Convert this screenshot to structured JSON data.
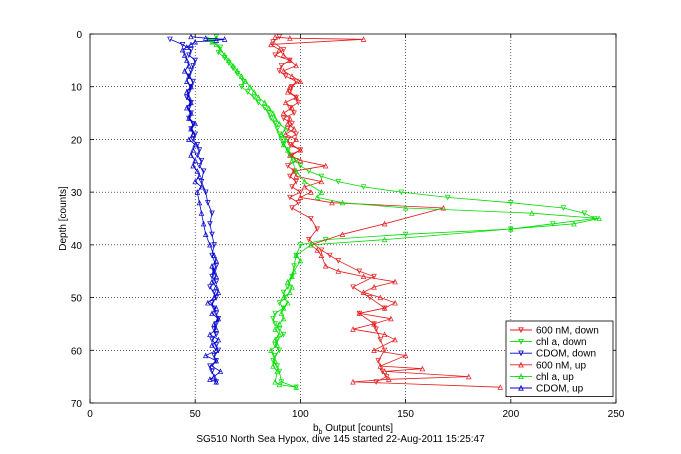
{
  "caption": "SG510 North Sea Hypox, dive 145 started 22-Aug-2011 15:25:47",
  "chart_data": {
    "type": "line",
    "title": "",
    "xlabel_main": "b",
    "xlabel_sub": "b",
    "xlabel_rest": " Output [counts]",
    "ylabel": "Depth [counts]",
    "xlim": [
      0,
      250
    ],
    "ylim": [
      0,
      70
    ],
    "y_reversed": true,
    "grid": true,
    "legend_position": "bottom-right",
    "x_ticks": [
      0,
      50,
      100,
      150,
      200,
      250
    ],
    "y_ticks": [
      0,
      10,
      20,
      30,
      40,
      50,
      60,
      70
    ],
    "colors": {
      "red": "#e41a1c",
      "green": "#00dd00",
      "blue": "#0000cc"
    },
    "series": [
      {
        "name": "600 nM, down",
        "color": "#e41a1c",
        "marker": "triangle-down",
        "x": [
          90,
          87,
          92,
          88,
          95,
          91,
          90,
          93,
          98,
          96,
          95,
          98,
          99,
          95,
          97,
          92,
          96,
          94,
          98,
          94,
          95,
          100,
          96,
          98,
          94,
          97,
          95,
          98,
          96,
          100,
          95,
          99,
          96,
          105,
          108,
          104,
          110,
          114,
          118,
          128,
          135,
          125,
          133,
          140,
          128,
          135,
          136,
          138,
          140,
          137,
          139,
          141,
          136
        ],
        "y": [
          0.5,
          1.5,
          3,
          4,
          5,
          6,
          7,
          8,
          9,
          10,
          11,
          12,
          13,
          14,
          15,
          16,
          17,
          18,
          19,
          20,
          21,
          22,
          23,
          24,
          25,
          26,
          27,
          28,
          29,
          30,
          31,
          32,
          33,
          35,
          37,
          39,
          41,
          42,
          43,
          45,
          46,
          48,
          50,
          52,
          53,
          55,
          56,
          58,
          60,
          62,
          64,
          65,
          66
        ]
      },
      {
        "name": "chl a, down",
        "color": "#00dd00",
        "marker": "triangle-down",
        "x": [
          60,
          58,
          62,
          61,
          64,
          66,
          68,
          70,
          73,
          72,
          75,
          78,
          80,
          83,
          85,
          86,
          88,
          89,
          90,
          91,
          92,
          94,
          95,
          98,
          100,
          104,
          110,
          118,
          130,
          148,
          170,
          200,
          225,
          235,
          240,
          220,
          200,
          150,
          112,
          100,
          98,
          97,
          96,
          94,
          92,
          93,
          90,
          92,
          88,
          87,
          88,
          90,
          92,
          89,
          88,
          90,
          88,
          87,
          89,
          90,
          91,
          98
        ],
        "y": [
          0.5,
          1.5,
          2.5,
          3.5,
          4.5,
          5.5,
          6.5,
          7.5,
          9,
          10,
          11,
          12,
          13,
          14,
          15,
          16,
          17,
          18,
          19,
          20,
          21,
          22,
          23,
          24,
          25,
          26,
          27,
          28,
          29,
          30,
          31,
          32,
          33,
          34,
          35,
          36,
          37,
          38,
          39,
          40,
          42,
          44,
          46,
          48,
          49,
          50,
          51,
          52,
          53,
          54,
          55,
          56,
          57,
          58,
          59,
          60,
          61,
          62,
          63,
          64,
          66,
          67
        ]
      },
      {
        "name": "CDOM, down",
        "color": "#0000cc",
        "marker": "triangle-down",
        "x": [
          38,
          44,
          48,
          47,
          50,
          49,
          48,
          47,
          49,
          48,
          47,
          46,
          48,
          47,
          48,
          47,
          49,
          48,
          50,
          49,
          51,
          52,
          51,
          53,
          52,
          54,
          53,
          55,
          56,
          58,
          57,
          58,
          59,
          58,
          60,
          59,
          58,
          60,
          57,
          59,
          60,
          58,
          59,
          60,
          61,
          60,
          59,
          60,
          58,
          60,
          61,
          59,
          60,
          57,
          58,
          60
        ],
        "y": [
          1,
          2,
          3,
          4,
          5,
          6,
          7,
          8,
          9,
          10,
          11,
          12,
          13,
          14,
          15,
          16,
          17,
          18,
          19,
          20,
          21,
          22,
          23,
          24,
          25,
          26,
          28,
          30,
          32,
          34,
          36,
          38,
          40,
          42,
          44,
          45,
          46,
          47,
          48,
          49,
          50,
          51,
          52,
          53,
          54,
          55,
          56,
          57,
          58,
          59,
          60,
          61,
          62,
          63,
          64,
          66
        ]
      },
      {
        "name": "600 nM, up",
        "color": "#e41a1c",
        "marker": "triangle-up",
        "x": [
          195,
          125,
          142,
          180,
          140,
          158,
          138,
          150,
          135,
          145,
          140,
          125,
          135,
          143,
          128,
          140,
          145,
          138,
          130,
          135,
          145,
          130,
          118,
          112,
          110,
          108,
          105,
          120,
          140,
          168,
          115,
          100,
          105,
          102,
          110,
          98,
          97,
          112,
          100,
          95,
          100,
          96,
          98,
          93,
          97,
          94,
          95,
          92,
          96,
          93,
          98,
          94,
          95,
          100,
          96,
          92,
          98,
          95,
          92,
          90,
          86,
          130,
          95,
          88
        ],
        "y": [
          67,
          66,
          65.5,
          65,
          64,
          63.5,
          63,
          61,
          60,
          58,
          57,
          56,
          55,
          54,
          53,
          52,
          51,
          50,
          49,
          48,
          47,
          46,
          45,
          44,
          42,
          41,
          40,
          38,
          36,
          33,
          32,
          31,
          30,
          29,
          28,
          27,
          26,
          25,
          24,
          23,
          22,
          21,
          20,
          19,
          18,
          17,
          16,
          15,
          14,
          13,
          12,
          11,
          10,
          9,
          8,
          7,
          6,
          5,
          4,
          3,
          2,
          1,
          0.8,
          0.6
        ]
      },
      {
        "name": "chl a, up",
        "color": "#00dd00",
        "marker": "triangle-up",
        "x": [
          98,
          90,
          88,
          89,
          87,
          88,
          86,
          89,
          88,
          90,
          88,
          90,
          92,
          91,
          92,
          94,
          92,
          95,
          96,
          94,
          96,
          97,
          100,
          98,
          105,
          140,
          200,
          230,
          242,
          210,
          150,
          120,
          108,
          110,
          102,
          98,
          96,
          94,
          92,
          93,
          91,
          93,
          90,
          88,
          87,
          85,
          83,
          80,
          78,
          76,
          74,
          72,
          70,
          68,
          66,
          64,
          62,
          60,
          58,
          56,
          60
        ],
        "y": [
          67,
          66.5,
          66,
          64,
          63,
          62,
          60,
          59,
          58,
          57,
          56,
          55,
          54,
          53,
          52,
          51,
          50,
          49,
          48,
          47,
          46,
          45,
          43,
          42,
          40,
          39,
          37,
          36,
          35,
          34,
          33,
          32,
          31,
          30,
          28,
          26,
          24,
          22,
          21,
          20,
          19,
          18,
          17,
          16,
          15,
          14,
          13,
          12,
          11,
          10,
          9,
          8,
          7,
          6,
          5,
          4,
          3,
          2,
          1.5,
          1,
          0.8
        ]
      },
      {
        "name": "CDOM, up",
        "color": "#0000cc",
        "marker": "triangle-up",
        "x": [
          60,
          57,
          59,
          62,
          58,
          60,
          55,
          60,
          58,
          61,
          57,
          60,
          59,
          61,
          58,
          60,
          56,
          59,
          61,
          60,
          58,
          60,
          59,
          58,
          60,
          59,
          57,
          55,
          54,
          53,
          52,
          51,
          53,
          50,
          52,
          51,
          49,
          50,
          48,
          49,
          50,
          47,
          49,
          48,
          50,
          47,
          48,
          46,
          48,
          47,
          46,
          48,
          46,
          47,
          45,
          47,
          46,
          45,
          44,
          46,
          48,
          50,
          60,
          64,
          55,
          48
        ],
        "y": [
          66,
          65.5,
          65,
          64,
          63,
          62,
          61,
          60,
          59,
          58,
          57,
          56,
          55,
          54,
          53,
          52,
          51,
          50,
          49,
          48,
          47,
          46,
          45,
          44,
          43,
          42,
          40,
          38,
          36,
          34,
          32,
          30,
          29,
          28,
          27,
          26,
          25,
          24,
          23,
          22,
          21,
          20,
          19,
          18,
          17,
          16,
          15,
          14,
          13,
          12,
          11,
          10,
          9,
          8,
          7,
          6,
          5,
          4,
          3,
          2.5,
          2,
          1.5,
          1.2,
          1,
          0.8,
          0.5
        ]
      }
    ]
  }
}
